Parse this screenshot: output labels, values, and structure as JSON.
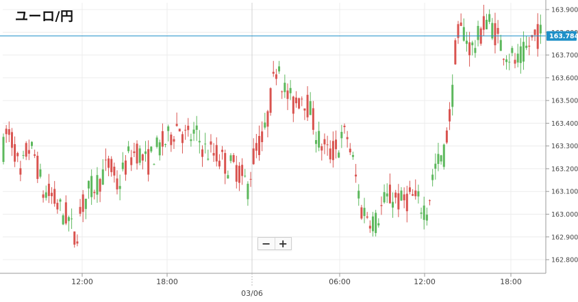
{
  "title": "ユーロ/円",
  "zoom": {
    "minus": "−",
    "plus": "+"
  },
  "colors": {
    "up": "#5cb85c",
    "down": "#d9534f",
    "line": "#1e90c8",
    "grid": "#ececec",
    "axis": "#999999"
  },
  "chart_data": {
    "type": "candlestick",
    "title": "ユーロ/円",
    "ylim": [
      162.74,
      163.93
    ],
    "yticks": [
      "163.900",
      "163.800",
      "163.700",
      "163.600",
      "163.500",
      "163.400",
      "163.300",
      "163.200",
      "163.100",
      "163.000",
      "162.900",
      "162.800"
    ],
    "xticks": [
      "12:00",
      "18:00",
      "03/06",
      "06:00",
      "12:00",
      "18:00"
    ],
    "current_price": "163.784",
    "current_value": 163.784,
    "grid": true,
    "candles": []
  }
}
